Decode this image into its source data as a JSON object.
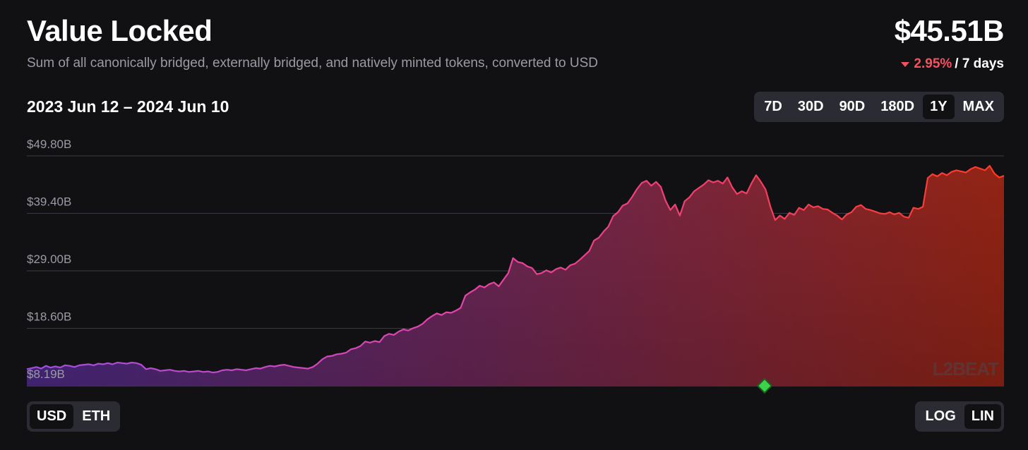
{
  "header": {
    "title": "Value Locked",
    "subtitle": "Sum of all canonically bridged, externally bridged, and natively minted tokens, converted to USD",
    "total": "$45.51B",
    "change_pct": "2.95%",
    "change_period": "/ 7 days"
  },
  "range_label": "2023 Jun 12 – 2024 Jun 10",
  "timeframes": [
    {
      "label": "7D",
      "active": false
    },
    {
      "label": "30D",
      "active": false
    },
    {
      "label": "90D",
      "active": false
    },
    {
      "label": "180D",
      "active": false
    },
    {
      "label": "1Y",
      "active": true
    },
    {
      "label": "MAX",
      "active": false
    }
  ],
  "units": [
    {
      "label": "USD",
      "active": true
    },
    {
      "label": "ETH",
      "active": false
    }
  ],
  "scale_options": [
    {
      "label": "LOG",
      "active": false
    },
    {
      "label": "LIN",
      "active": true
    }
  ],
  "watermark": "L2BEAT",
  "colors": {
    "background": "#111114",
    "line_start": "#b94fd6",
    "line_mid": "#e8408a",
    "line_end": "#ff3b2f",
    "marker": "#3bd34a",
    "negative": "#f5515f"
  },
  "chart_data": {
    "type": "area",
    "y_tick_labels": [
      "$49.80B",
      "$39.40B",
      "$29.00B",
      "$18.60B",
      "$8.19B"
    ],
    "y_ticks": [
      49.8,
      39.4,
      29.0,
      18.6,
      8.19
    ],
    "ylim": [
      8.19,
      49.8
    ],
    "grid": true,
    "marker_x": 0.755,
    "series": [
      {
        "values": [
          11.2,
          11.4,
          11.6,
          11.3,
          11.8,
          11.5,
          11.7,
          11.5,
          11.9,
          11.8,
          11.6,
          11.9,
          12.0,
          12.1,
          11.9,
          12.2,
          12.1,
          12.3,
          12.1,
          12.4,
          12.3,
          12.2,
          12.4,
          12.3,
          12.0,
          11.2,
          11.4,
          11.2,
          10.9,
          11.0,
          11.1,
          10.9,
          10.8,
          10.9,
          10.7,
          10.8,
          10.9,
          10.7,
          10.8,
          10.6,
          10.7,
          11.0,
          11.1,
          11.0,
          11.2,
          11.1,
          11.0,
          11.2,
          11.4,
          11.3,
          11.6,
          11.8,
          11.7,
          11.9,
          12.0,
          11.8,
          11.6,
          11.5,
          11.4,
          11.3,
          11.6,
          12.2,
          13.0,
          13.5,
          13.6,
          13.9,
          14.0,
          14.2,
          14.8,
          15.0,
          15.4,
          16.2,
          16.0,
          16.3,
          16.1,
          17.2,
          17.6,
          17.4,
          18.0,
          18.4,
          18.2,
          18.6,
          18.9,
          19.4,
          20.2,
          20.8,
          21.3,
          21.0,
          21.5,
          21.4,
          21.8,
          22.3,
          24.5,
          25.1,
          25.6,
          26.3,
          26.0,
          26.6,
          26.9,
          26.2,
          27.4,
          28.6,
          31.3,
          30.6,
          30.4,
          29.8,
          29.5,
          28.4,
          28.6,
          29.1,
          28.7,
          29.3,
          29.6,
          29.2,
          30.0,
          30.3,
          31.0,
          31.8,
          32.6,
          34.5,
          35.0,
          36.1,
          37.0,
          38.9,
          39.6,
          40.8,
          41.2,
          42.4,
          43.8,
          44.9,
          45.3,
          44.4,
          45.1,
          44.2,
          41.7,
          40.0,
          41.0,
          39.0,
          41.6,
          42.3,
          43.4,
          44.0,
          44.6,
          45.4,
          45.0,
          45.3,
          44.8,
          45.9,
          44.1,
          42.9,
          43.4,
          43.0,
          44.8,
          46.3,
          45.1,
          43.7,
          40.6,
          38.2,
          39.0,
          38.4,
          39.5,
          39.1,
          40.4,
          40.0,
          41.0,
          40.5,
          40.7,
          40.2,
          40.1,
          39.5,
          39.0,
          38.3,
          39.2,
          39.6,
          40.6,
          40.9,
          40.2,
          40.0,
          39.7,
          39.4,
          39.3,
          39.6,
          39.2,
          39.5,
          38.8,
          38.6,
          40.4,
          40.2,
          40.6,
          45.8,
          46.5,
          46.1,
          46.7,
          46.3,
          46.9,
          47.2,
          47.0,
          46.8,
          47.4,
          47.8,
          47.5,
          47.2,
          48.0,
          46.6,
          45.9,
          46.2
        ]
      }
    ]
  }
}
